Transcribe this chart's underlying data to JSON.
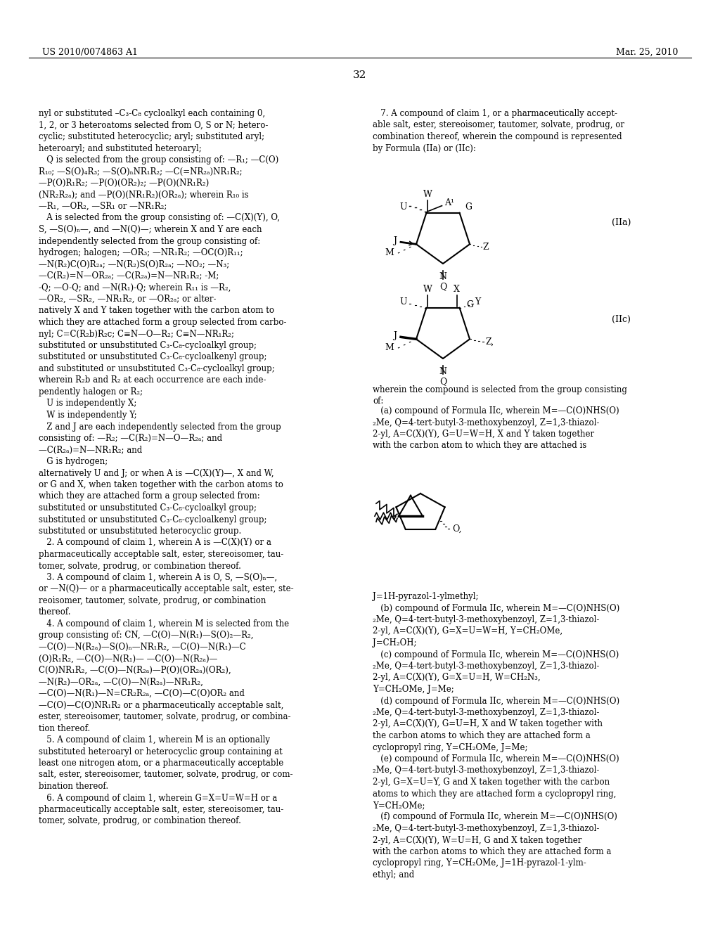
{
  "bg_color": "#ffffff",
  "header_left": "US 2010/0074863 A1",
  "header_right": "Mar. 25, 2010",
  "page_number": "32",
  "left_col_text": [
    "nyl or substituted –C₃-C₈ cycloalkyl each containing 0,",
    "1, 2, or 3 heteroatoms selected from O, S or N; hetero-",
    "cyclic; substituted heterocyclic; aryl; substituted aryl;",
    "heteroaryl; and substituted heteroaryl;",
    "   Q is selected from the group consisting of: —R₁; —C(O)",
    "R₁₀; —S(O)₄R₃; —S(O)ₙNR₁R₂; —C(=NR₂ₐ)NR₁R₂;",
    "—P(O)R₁R₂; —P(O)(OR₂)₂; —P(O)(NR₁R₂)",
    "(NR₂R₂ₐ); and —P(O)(NR₁R₂)(OR₂ₐ); wherein R₁₀ is",
    "—R₁, —OR₂, —SR₁ or —NR₁R₂;",
    "   A is selected from the group consisting of: —C(X)(Y), O,",
    "S, —S(O)ₙ—, and —N(Q)—; wherein X and Y are each",
    "independently selected from the group consisting of:",
    "hydrogen; halogen; —OR₃; —NR₁R₂; —OC(O)R₁₁;",
    "—N(R₂)C(O)R₂ₐ; —N(R₂)S(O)R₂ₐ; —NO₂; —N₃;",
    "—C(R₂)=N—OR₂ₐ; —C(R₂ₐ)=N—NR₁R₂; -M;",
    "-Q; —O-Q; and —N(R₁)-Q; wherein R₁₁ is —R₂,",
    "—OR₂, —SR₂, —NR₁R₂, or —OR₂ₐ; or alter-",
    "natively X and Y taken together with the carbon atom to",
    "which they are attached form a group selected from carbo-",
    "nyl; C=C(R₂b)R₂c; C≡N—O—R₂; C≡N—NR₁R₂;",
    "substituted or unsubstituted C₃-C₈-cycloalkyl group;",
    "substituted or unsubstituted C₃-C₈-cycloalkenyl group;",
    "and substituted or unsubstituted C₃-C₈-cycloalkyl group;",
    "wherein R₂b and R₂ at each occurrence are each inde-",
    "pendently halogen or R₂;",
    "   U is independently X;",
    "   W is independently Y;",
    "   Z and J are each independently selected from the group",
    "consisting of: —R₂; —C(R₂)=N—O—R₂ₐ; and",
    "—C(R₂ₐ)=N—NR₁R₂; and",
    "   G is hydrogen;",
    "alternatively U and J; or when A is —C(X)(Y)—, X and W,",
    "or G and X, when taken together with the carbon atoms to",
    "which they are attached form a group selected from:",
    "substituted or unsubstituted C₃-C₈-cycloalkyl group;",
    "substituted or unsubstituted C₃-C₈-cycloalkenyl group;",
    "substituted or unsubstituted heterocyclic group.",
    "   2. A compound of claim 1, wherein A is —C(X)(Y) or a",
    "pharmaceutically acceptable salt, ester, stereoisomer, tau-",
    "tomer, solvate, prodrug, or combination thereof.",
    "   3. A compound of claim 1, wherein A is O, S, —S(O)ₙ—,",
    "or —N(Q)— or a pharmaceutically acceptable salt, ester, ste-",
    "reoisomer, tautomer, solvate, prodrug, or combination",
    "thereof.",
    "   4. A compound of claim 1, wherein M is selected from the",
    "group consisting of: CN, —C(O)—N(R₁)—S(O)₂—R₂,",
    "—C(O)—N(R₂ₐ)—S(O)ₙ—NR₁R₂, —C(O)—N(R₁)—C",
    "(O)R₁R₂, —C(O)—N(R₁)— —C(O)—N(R₂ₐ)—",
    "C(O)NR₁R₂, —C(O)—N(R₂ₐ)—P(O)(OR₂ₐ)(OR₂),",
    "—N(R₂)—OR₂ₐ, —C(O)—N(R₂ₐ)—NR₁R₂,",
    "—C(O)—N(R₁)—N=CR₂R₂ₐ, —C(O)—C(O)OR₂ and",
    "—C(O)—C(O)NR₁R₂ or a pharmaceutically acceptable salt,",
    "ester, stereoisomer, tautomer, solvate, prodrug, or combina-",
    "tion thereof.",
    "   5. A compound of claim 1, wherein M is an optionally",
    "substituted heteroaryl or heterocyclic group containing at",
    "least one nitrogen atom, or a pharmaceutically acceptable",
    "salt, ester, stereoisomer, tautomer, solvate, prodrug, or com-",
    "bination thereof.",
    "   6. A compound of claim 1, wherein G=X=U=W=H or a",
    "pharmaceutically acceptable salt, ester, stereoisomer, tau-",
    "tomer, solvate, prodrug, or combination thereof."
  ],
  "right_col_text_top": [
    "   7. A compound of claim 1, or a pharmaceutically accept-",
    "able salt, ester, stereoisomer, tautomer, solvate, prodrug, or",
    "combination thereof, wherein the compound is represented",
    "by Formula (IIa) or (IIc):"
  ],
  "formula_IIa_label": "(IIa)",
  "formula_IIc_label": "(IIc)",
  "right_col_text_mid": [
    "wherein the compound is selected from the group consisting",
    "of:"
  ],
  "right_col_text_bottom": [
    "   (a) compound of Formula IIc, wherein M=—C(O)NHS(O)",
    "₂Me, Q=4-tert-butyl-3-methoxybenzoyl, Z=1,3-thiazol-",
    "2-yl, A=C(X)(Y), G=U=W=H, X and Y taken together",
    "with the carbon atom to which they are attached is",
    "",
    "",
    "",
    "",
    "",
    "",
    "",
    "",
    "J=1H-pyrazol-1-ylmethyl;",
    "   (b) compound of Formula IIc, wherein M=—C(O)NHS(O)",
    "₂Me, Q=4-tert-butyl-3-methoxybenzoyl, Z=1,3-thiazol-",
    "2-yl, A=C(X)(Y), G=X=U=W=H, Y=CH₂OMe,",
    "J=CH₂OH;",
    "   (c) compound of Formula IIc, wherein M=—C(O)NHS(O)",
    "₂Me, Q=4-tert-butyl-3-methoxybenzoyl, Z=1,3-thiazol-",
    "2-yl, A=C(X)(Y), G=X=U=H, W=CH₂N₃,",
    "Y=CH₂OMe, J=Me;",
    "   (d) compound of Formula IIc, wherein M=—C(O)NHS(O)",
    "₂Me, Q=4-tert-butyl-3-methoxybenzoyl, Z=1,3-thiazol-",
    "2-yl, A=C(X)(Y), G=U=H, X and W taken together with",
    "the carbon atoms to which they are attached form a",
    "cyclopropyl ring, Y=CH₂OMe, J=Me;",
    "   (e) compound of Formula IIc, wherein M=—C(O)NHS(O)",
    "₂Me, Q=4-tert-butyl-3-methoxybenzoyl, Z=1,3-thiazol-",
    "2-yl, G=X=U=Y, G and X taken together with the carbon",
    "atoms to which they are attached form a cyclopropyl ring,",
    "Y=CH₂OMe;",
    "   (f) compound of Formula IIc, wherein M=—C(O)NHS(O)",
    "₂Me, Q=4-tert-butyl-3-methoxybenzoyl, Z=1,3-thiazol-",
    "2-yl, A=C(X)(Y), W=U=H, G and X taken together",
    "with the carbon atoms to which they are attached form a",
    "cyclopropyl ring, Y=CH₂OMe, J=1H-pyrazol-1-ylm-",
    "ethyl; and"
  ]
}
